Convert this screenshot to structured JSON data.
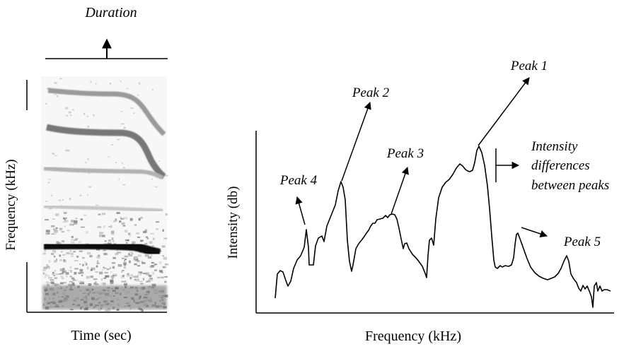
{
  "spectrogram": {
    "duration_label": "Duration",
    "y_axis_label": "Frequency (kHz)",
    "x_axis_label": "Time (sec)"
  },
  "spectrum": {
    "y_axis_label": "Intensity (db)",
    "x_axis_label": "Frequency (kHz)",
    "peaks": {
      "peak1": "Peak 1",
      "peak2": "Peak 2",
      "peak3": "Peak 3",
      "peak4": "Peak 4",
      "peak5": "Peak 5"
    },
    "intensity_note": [
      "Intensity",
      "differences",
      "between peaks"
    ]
  },
  "colors": {
    "ink": "#000000",
    "background": "#ffffff"
  }
}
